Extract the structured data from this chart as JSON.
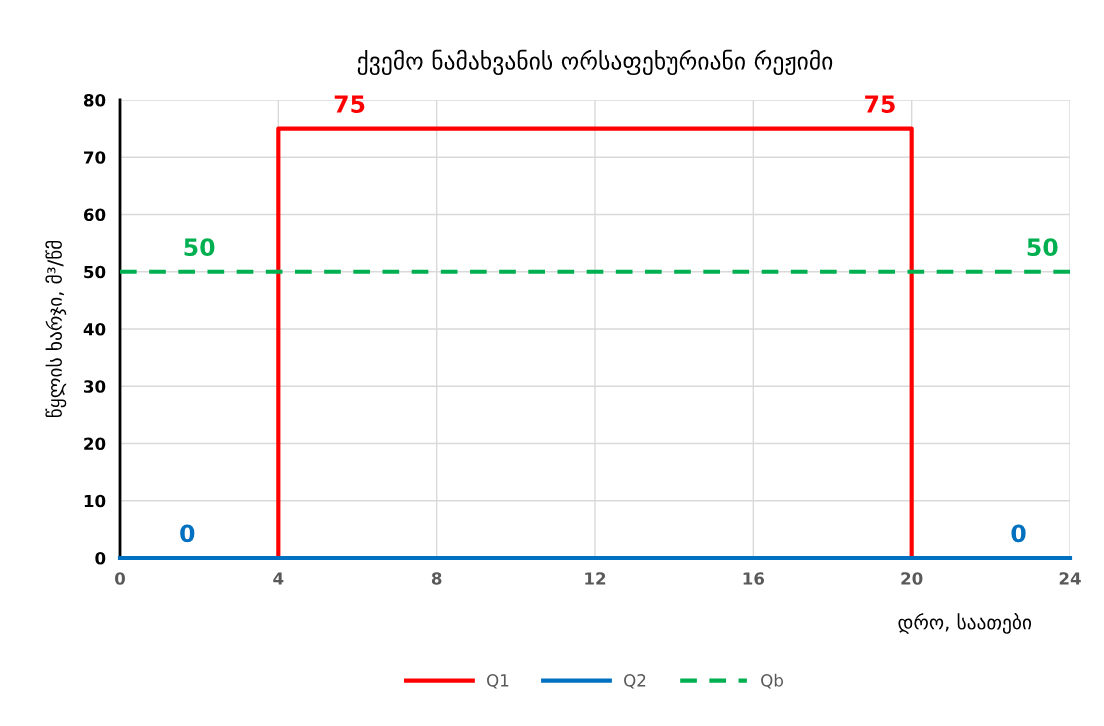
{
  "chart_data": {
    "type": "line",
    "title": "ქვემო ნამახვანის ორსაფეხურიანი რეჟიმი",
    "xlabel": "დრო, საათები",
    "ylabel": "წყლის ხარჯი, მ³/წმ",
    "series": [
      {
        "name": "Q1",
        "color": "#ff0000",
        "x": [
          4,
          4,
          20,
          20
        ],
        "values": [
          0,
          75,
          75,
          0
        ],
        "line_style": "solid"
      },
      {
        "name": "Q2",
        "color": "#0070c0",
        "x": [
          0,
          24
        ],
        "values": [
          0,
          0
        ],
        "line_style": "solid"
      },
      {
        "name": "Qb",
        "color": "#00b050",
        "x": [
          0,
          24
        ],
        "values": [
          50,
          50
        ],
        "line_style": "dashed"
      }
    ],
    "annotations": [
      {
        "text": "75",
        "x": 5.8,
        "y": 75
      },
      {
        "text": "75",
        "x": 19.2,
        "y": 75
      },
      {
        "text": "50",
        "x": 2.0,
        "y": 50
      },
      {
        "text": "50",
        "x": 23.3,
        "y": 50
      },
      {
        "text": "0",
        "x": 1.7,
        "y": 0
      },
      {
        "text": "0",
        "x": 22.7,
        "y": 0
      }
    ],
    "xlim": [
      0,
      24
    ],
    "xticks": [
      0,
      4,
      8,
      12,
      16,
      20,
      24
    ],
    "ylim": [
      0,
      80
    ],
    "yticks": [
      0,
      10,
      20,
      30,
      40,
      50,
      60,
      70,
      80
    ],
    "grid": true,
    "legend": "bottom",
    "marker": "none"
  }
}
